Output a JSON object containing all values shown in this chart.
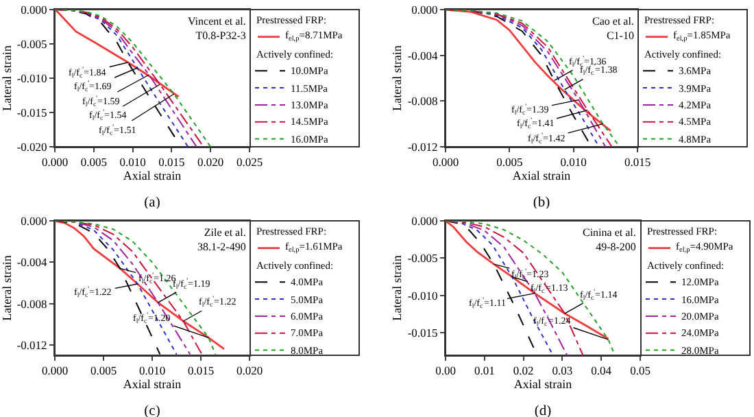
{
  "chart_data": [
    {
      "type": "line",
      "title": "(a)",
      "xlabel": "Axial strain",
      "ylabel": "Lateral strain",
      "legend_title": "Prestressed FRP:",
      "legend": "right",
      "grid": false,
      "xlim": [
        0,
        0.025
      ],
      "xticks": [
        {
          "value": 0,
          "label": "0.000"
        },
        {
          "value": 0.005,
          "label": "0.005"
        },
        {
          "value": 0.01,
          "label": "0.010"
        },
        {
          "value": 0.015,
          "label": "0.015"
        },
        {
          "value": 0.02,
          "label": "0.020"
        },
        {
          "value": 0.025,
          "label": "0.025"
        }
      ],
      "ylim": [
        -0.02,
        0
      ],
      "yticks": [
        {
          "value": 0,
          "label": "0.000"
        },
        {
          "value": -0.005,
          "label": "-0.005"
        },
        {
          "value": -0.01,
          "label": "-0.010"
        },
        {
          "value": -0.015,
          "label": "-0.015"
        },
        {
          "value": -0.02,
          "label": "-0.020"
        }
      ],
      "series": [
        {
          "name": "f$_{el,p}$=8.71MPa",
          "color": "#f03c3c",
          "line_style": "solid",
          "x": [
            0,
            0.0005,
            0.0027,
            0.005,
            0.0094,
            0.012,
            0.0159
          ],
          "values": [
            0,
            -0.0005,
            -0.0032,
            -0.0047,
            -0.0077,
            -0.0096,
            -0.0127
          ]
        },
        {
          "name": "10.0MPa",
          "color": "#000000",
          "line_style": "dashed",
          "x": [
            0,
            0.002,
            0.004,
            0.006,
            0.008,
            0.0094,
            0.012,
            0.0162
          ],
          "values": [
            0,
            -0.0001,
            -0.0006,
            -0.002,
            -0.0048,
            -0.0077,
            -0.0125,
            -0.02
          ]
        },
        {
          "name": "11.5MPa",
          "color": "#3030c8",
          "line_style": "dotted",
          "x": [
            0,
            0.002,
            0.004,
            0.006,
            0.008,
            0.0106,
            0.013,
            0.0171
          ],
          "values": [
            0,
            -0.0001,
            -0.0005,
            -0.0016,
            -0.0038,
            -0.0085,
            -0.0128,
            -0.02
          ]
        },
        {
          "name": "13.0MPa",
          "color": "#a020a0",
          "line_style": "dashdot",
          "x": [
            0,
            0.002,
            0.004,
            0.006,
            0.008,
            0.01,
            0.0121,
            0.0182
          ],
          "values": [
            0,
            -0.0001,
            -0.0004,
            -0.0014,
            -0.0033,
            -0.0064,
            -0.0095,
            -0.02
          ]
        },
        {
          "name": "14.5MPa",
          "color": "#c8143c",
          "line_style": "dashdot",
          "x": [
            0,
            0.002,
            0.004,
            0.006,
            0.008,
            0.01,
            0.0135,
            0.0191
          ],
          "values": [
            0,
            -0.0001,
            -0.0004,
            -0.0012,
            -0.0029,
            -0.0055,
            -0.0109,
            -0.02
          ]
        },
        {
          "name": "16.0MPa",
          "color": "#22a022",
          "line_style": "dotted",
          "x": [
            0,
            0.002,
            0.004,
            0.006,
            0.008,
            0.01,
            0.0153,
            0.02
          ],
          "values": [
            0,
            -0.0001,
            -0.0003,
            -0.001,
            -0.0025,
            -0.0048,
            -0.0123,
            -0.02
          ]
        }
      ],
      "annotations": [
        "Vincent et al.\nT0.8-P32-3",
        "Actively confined:",
        {
          "text": "f$_{l}$/f$_{c}$$^{'}$=1.84",
          "x": 0.0094,
          "y": -0.0077
        },
        {
          "text": "f$_{l}$/f$_{c}$$^{'}$=1.69",
          "x": 0.0106,
          "y": -0.0085
        },
        {
          "text": "f$_{l}$/f$_{c}$$^{'}$=1.59",
          "x": 0.0121,
          "y": -0.0095
        },
        {
          "text": "f$_{l}$/f$_{c}$$^{'}$=1.54",
          "x": 0.0135,
          "y": -0.0109
        },
        {
          "text": "f$_{l}$/f$_{c}$$^{'}$=1.51",
          "x": 0.0153,
          "y": -0.0123
        }
      ]
    },
    {
      "type": "line",
      "title": "(b)",
      "xlabel": "Axial strain",
      "ylabel": "Lateral strain",
      "legend_title": "Prestressed FRP:",
      "legend": "right",
      "grid": false,
      "xlim": [
        0,
        0.015
      ],
      "xticks": [
        {
          "value": 0,
          "label": "0.000"
        },
        {
          "value": 0.005,
          "label": "0.005"
        },
        {
          "value": 0.01,
          "label": "0.010"
        },
        {
          "value": 0.015,
          "label": "0.015"
        }
      ],
      "ylim": [
        -0.012,
        0
      ],
      "yticks": [
        {
          "value": 0,
          "label": "0.000"
        },
        {
          "value": -0.004,
          "label": "-0.004"
        },
        {
          "value": -0.008,
          "label": "-0.008"
        },
        {
          "value": -0.012,
          "label": "-0.012"
        }
      ],
      "series": [
        {
          "name": "f$_{el,p}$=1.85MPa",
          "color": "#f03c3c",
          "line_style": "solid",
          "x": [
            0,
            0.002,
            0.004,
            0.005,
            0.006,
            0.007,
            0.008,
            0.009,
            0.01,
            0.011,
            0.0129
          ],
          "values": [
            0,
            -0.0002,
            -0.0009,
            -0.0018,
            -0.0032,
            -0.0046,
            -0.0058,
            -0.0069,
            -0.0079,
            -0.0089,
            -0.0106
          ]
        },
        {
          "name": "3.6MPa",
          "color": "#000000",
          "line_style": "dashed",
          "x": [
            0,
            0.002,
            0.004,
            0.006,
            0.0075,
            0.0085,
            0.01,
            0.0114
          ],
          "values": [
            0,
            -0.0001,
            -0.0006,
            -0.0019,
            -0.004,
            -0.0062,
            -0.0093,
            -0.012
          ]
        },
        {
          "name": "3.9MPa",
          "color": "#3030c8",
          "line_style": "dotted",
          "x": [
            0,
            0.002,
            0.004,
            0.006,
            0.0075,
            0.0093,
            0.0108,
            0.012
          ],
          "values": [
            0,
            -0.0001,
            -0.0005,
            -0.0016,
            -0.0035,
            -0.007,
            -0.0097,
            -0.012
          ]
        },
        {
          "name": "4.2MPa",
          "color": "#a020a0",
          "line_style": "dashdot",
          "x": [
            0,
            0.002,
            0.004,
            0.006,
            0.008,
            0.0104,
            0.0125
          ],
          "values": [
            0,
            -0.0001,
            -0.0004,
            -0.0014,
            -0.0037,
            -0.0079,
            -0.012
          ]
        },
        {
          "name": "4.5MPa",
          "color": "#c8143c",
          "line_style": "dashdot",
          "x": [
            0,
            0.002,
            0.004,
            0.006,
            0.008,
            0.0111,
            0.013
          ],
          "values": [
            0,
            -0.0001,
            -0.0004,
            -0.0012,
            -0.0033,
            -0.0088,
            -0.012
          ]
        },
        {
          "name": "4.8MPa",
          "color": "#22a022",
          "line_style": "dotted",
          "x": [
            0,
            0.002,
            0.004,
            0.006,
            0.008,
            0.01,
            0.0123,
            0.0136
          ],
          "values": [
            0,
            -0.0001,
            -0.0003,
            -0.001,
            -0.0028,
            -0.0058,
            -0.01,
            -0.012
          ]
        }
      ],
      "annotations": [
        "Cao et al.\nC1-10",
        "Actively confined:",
        {
          "text": "f$_{l}$/f$_{c}$$^{'}$=1.36",
          "x": 0.0085,
          "y": -0.0062
        },
        {
          "text": "f$_{l}$/f$_{c}$$^{'}$=1.38",
          "x": 0.0093,
          "y": -0.007
        },
        {
          "text": "f$_{l}$/f$_{c}$$^{'}$=1.39",
          "x": 0.0104,
          "y": -0.0079
        },
        {
          "text": "f$_{l}$/f$_{c}$$^{'}$=1.41",
          "x": 0.0111,
          "y": -0.0088
        },
        {
          "text": "f$_{l}$/f$_{c}$$^{'}$=1.42",
          "x": 0.0123,
          "y": -0.01
        }
      ]
    },
    {
      "type": "line",
      "title": "(c)",
      "xlabel": "Axial strain",
      "ylabel": "Lateral strain",
      "legend_title": "Prestressed FRP:",
      "legend": "right",
      "grid": false,
      "xlim": [
        0,
        0.02
      ],
      "xticks": [
        {
          "value": 0,
          "label": "0.000"
        },
        {
          "value": 0.005,
          "label": "0.005"
        },
        {
          "value": 0.01,
          "label": "0.010"
        },
        {
          "value": 0.015,
          "label": "0.015"
        },
        {
          "value": 0.02,
          "label": "0.020"
        }
      ],
      "ylim": [
        -0.013,
        0
      ],
      "yticks": [
        {
          "value": 0,
          "label": "0.000"
        },
        {
          "value": -0.004,
          "label": "-0.004"
        },
        {
          "value": -0.008,
          "label": "-0.008"
        },
        {
          "value": -0.012,
          "label": "-0.012"
        }
      ],
      "series": [
        {
          "name": "f$_{el,p}$=1.61MPa",
          "color": "#f03c3c",
          "line_style": "solid",
          "x": [
            0,
            0.001,
            0.002,
            0.003,
            0.004,
            0.0067,
            0.0085,
            0.0106,
            0.0132,
            0.0158,
            0.0174
          ],
          "values": [
            0,
            -0.0002,
            -0.0007,
            -0.0015,
            -0.0027,
            -0.0046,
            -0.0061,
            -0.0079,
            -0.0097,
            -0.0113,
            -0.0124
          ]
        },
        {
          "name": "4.0MPa",
          "color": "#000000",
          "line_style": "dashed",
          "x": [
            0,
            0.002,
            0.004,
            0.0055,
            0.0067,
            0.0085,
            0.0108
          ],
          "values": [
            0,
            -0.0002,
            -0.0012,
            -0.0028,
            -0.0046,
            -0.0082,
            -0.0129
          ]
        },
        {
          "name": "5.0MPa",
          "color": "#3030c8",
          "line_style": "dotted",
          "x": [
            0,
            0.002,
            0.004,
            0.006,
            0.0085,
            0.0105,
            0.0125
          ],
          "values": [
            0,
            -0.0001,
            -0.0009,
            -0.0028,
            -0.0061,
            -0.0095,
            -0.0129
          ]
        },
        {
          "name": "6.0MPa",
          "color": "#a020a0",
          "line_style": "dashdot",
          "x": [
            0,
            0.002,
            0.004,
            0.006,
            0.008,
            0.0106,
            0.0139
          ],
          "values": [
            0,
            -0.0001,
            -0.0006,
            -0.0019,
            -0.0042,
            -0.0079,
            -0.0129
          ]
        },
        {
          "name": "7.0MPa",
          "color": "#c8143c",
          "line_style": "dashdot",
          "x": [
            0,
            0.002,
            0.004,
            0.006,
            0.008,
            0.01,
            0.0132,
            0.0151
          ],
          "values": [
            0,
            -0.0001,
            -0.0004,
            -0.0013,
            -0.003,
            -0.0056,
            -0.0097,
            -0.0129
          ]
        },
        {
          "name": "8.0MPa",
          "color": "#22a022",
          "line_style": "dotted",
          "x": [
            0,
            0.002,
            0.004,
            0.006,
            0.008,
            0.01,
            0.012,
            0.0158,
            0.0165
          ],
          "values": [
            0,
            -0.0001,
            -0.0003,
            -0.0008,
            -0.002,
            -0.004,
            -0.0065,
            -0.0113,
            -0.0129
          ]
        }
      ],
      "annotations": [
        "Zile et al.\n38.1-2-490",
        "Actively confined:",
        {
          "text": "f$_{l}$/f$_{c}$$^{'}$=1.26",
          "x": 0.0067,
          "y": -0.0046
        },
        {
          "text": "f$_{l}$/f$_{c}$$^{'}$=1.22",
          "x": 0.0085,
          "y": -0.0061
        },
        {
          "text": "f$_{l}$/f$_{c}$$^{'}$=1.19",
          "x": 0.0106,
          "y": -0.0079
        },
        {
          "text": "f$_{l}$/f$_{c}$$^{'}$=1.22",
          "x": 0.0132,
          "y": -0.0097
        },
        {
          "text": "f$_{l}$/f$_{c}$$^{'}$=1.20",
          "x": 0.0158,
          "y": -0.0113
        }
      ]
    },
    {
      "type": "line",
      "title": "(d)",
      "xlabel": "Axial strain",
      "ylabel": "Lateral strain",
      "legend_title": "Prestressed FRP:",
      "legend": "right",
      "grid": false,
      "xlim": [
        0,
        0.05
      ],
      "xticks": [
        {
          "value": 0,
          "label": "0.00"
        },
        {
          "value": 0.01,
          "label": "0.01"
        },
        {
          "value": 0.02,
          "label": "0.02"
        },
        {
          "value": 0.03,
          "label": "0.03"
        },
        {
          "value": 0.04,
          "label": "0.04"
        },
        {
          "value": 0.05,
          "label": "0.05"
        }
      ],
      "ylim": [
        -0.018,
        0
      ],
      "yticks": [
        {
          "value": 0,
          "label": "0.000"
        },
        {
          "value": -0.005,
          "label": "-0.005"
        },
        {
          "value": -0.01,
          "label": "-0.010"
        },
        {
          "value": -0.015,
          "label": "-0.015"
        }
      ],
      "series": [
        {
          "name": "f$_{el,p}$=4.90MPa",
          "color": "#f03c3c",
          "line_style": "solid",
          "x": [
            0,
            0.002,
            0.0053,
            0.008,
            0.0124,
            0.0171,
            0.0229,
            0.0306,
            0.036,
            0.0418
          ],
          "values": [
            0,
            -0.0008,
            -0.0028,
            -0.0041,
            -0.0058,
            -0.0075,
            -0.0097,
            -0.0124,
            -0.014,
            -0.0158
          ]
        },
        {
          "name": "12.0MPa",
          "color": "#000000",
          "line_style": "dashed",
          "x": [
            0,
            0.003,
            0.006,
            0.009,
            0.0124,
            0.018,
            0.0235
          ],
          "values": [
            0,
            -0.0003,
            -0.0012,
            -0.003,
            -0.0058,
            -0.0117,
            -0.018
          ]
        },
        {
          "name": "16.0MPa",
          "color": "#3030c8",
          "line_style": "dotted",
          "x": [
            0,
            0.004,
            0.008,
            0.012,
            0.0171,
            0.022,
            0.0276
          ],
          "values": [
            0,
            -0.0003,
            -0.0012,
            -0.0032,
            -0.0075,
            -0.0126,
            -0.018
          ]
        },
        {
          "name": "20.0MPa",
          "color": "#a020a0",
          "line_style": "dashdot",
          "x": [
            0,
            0.005,
            0.01,
            0.015,
            0.0229,
            0.027,
            0.0312
          ],
          "values": [
            0,
            -0.0003,
            -0.0013,
            -0.0035,
            -0.0097,
            -0.0137,
            -0.018
          ]
        },
        {
          "name": "24.0MPa",
          "color": "#c8143c",
          "line_style": "dashdot",
          "x": [
            0,
            0.005,
            0.01,
            0.015,
            0.02,
            0.0306,
            0.0353
          ],
          "values": [
            0,
            -0.0002,
            -0.0008,
            -0.0022,
            -0.0043,
            -0.0124,
            -0.018
          ]
        },
        {
          "name": "28.0MPa",
          "color": "#22a022",
          "line_style": "dotted",
          "x": [
            0,
            0.005,
            0.01,
            0.015,
            0.02,
            0.025,
            0.03,
            0.0418,
            0.0435
          ],
          "values": [
            0,
            -0.0001,
            -0.0004,
            -0.0012,
            -0.0026,
            -0.0045,
            -0.0069,
            -0.0159,
            -0.018
          ]
        }
      ],
      "annotations": [
        "Cinina et al.\n49-8-200",
        "Actively confined:",
        {
          "text": "f$_{l}$/f$_{c}$$^{'}$=1.23",
          "x": 0.0124,
          "y": -0.0058
        },
        {
          "text": "f$_{l}$/f$_{c}$$^{'}$=1.13",
          "x": 0.0171,
          "y": -0.0075
        },
        {
          "text": "f$_{l}$/f$_{c}$$^{'}$=1.11",
          "x": 0.0229,
          "y": -0.0097
        },
        {
          "text": "f$_{l}$/f$_{c}$$^{'}$=1.14",
          "x": 0.0306,
          "y": -0.0124
        },
        {
          "text": "f$_{l}$/f$_{c}$$^{'}$=1.24",
          "x": 0.0418,
          "y": -0.0159
        }
      ]
    }
  ]
}
